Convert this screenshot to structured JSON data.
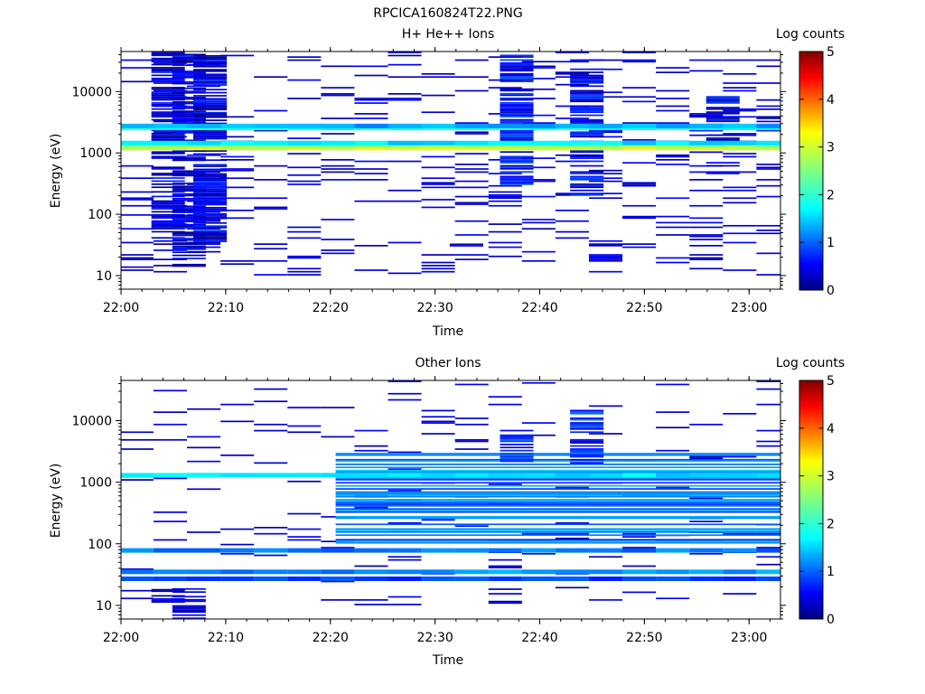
{
  "figure": {
    "title": "RPCICA160824T22.PNG"
  },
  "colors": {
    "background": "#ffffff",
    "axes": "#000000",
    "colormap": [
      "#000080",
      "#0000ff",
      "#0080ff",
      "#00ffff",
      "#80ff80",
      "#ffff00",
      "#ff8000",
      "#ff0000",
      "#800000"
    ]
  },
  "chart_data": [
    {
      "type": "heatmap",
      "title": "H+ He++ Ions",
      "xlabel": "Time",
      "ylabel": "Energy (eV)",
      "y_scale": "log",
      "xlim": [
        "22:00",
        "23:03"
      ],
      "ylim": [
        6,
        45000
      ],
      "x_ticks": [
        "22:00",
        "22:10",
        "22:20",
        "22:30",
        "22:40",
        "22:50",
        "23:00"
      ],
      "y_ticks": [
        "10",
        "100",
        "1000",
        "10000"
      ],
      "colorbar": {
        "label": "Log counts",
        "range": [
          0,
          5
        ],
        "ticks": [
          "0",
          "1",
          "2",
          "3",
          "4",
          "5"
        ]
      },
      "time_bins": [
        "22:01.5",
        "22:04.7",
        "22:07.9",
        "22:11.1",
        "22:14.3",
        "22:17.5",
        "22:20.7",
        "22:23.9",
        "22:27.1",
        "22:30.3",
        "22:33.5",
        "22:36.7",
        "22:39.9",
        "22:43.1",
        "22:46.3",
        "22:49.5",
        "22:52.7",
        "22:55.9",
        "22:59.1",
        "23:02.3"
      ],
      "bands": [
        {
          "energy_eV": 1200,
          "log_counts": 3.0
        },
        {
          "energy_eV": 1350,
          "log_counts": 2.6
        },
        {
          "energy_eV": 1450,
          "log_counts": 1.6
        },
        {
          "energy_eV": 2550,
          "log_counts": 1.8
        },
        {
          "energy_eV": 2750,
          "log_counts": 1.3
        }
      ],
      "patches": [
        {
          "time": "22:04.5",
          "energy_range_eV": [
            40,
            45000
          ],
          "log_counts": 0.3
        },
        {
          "time": "22:06.5",
          "energy_range_eV": [
            11,
            45000
          ],
          "log_counts": 0.3
        },
        {
          "time": "22:08.5",
          "energy_range_eV": [
            35,
            40000
          ],
          "log_counts": 0.4
        },
        {
          "time": "22:33.0",
          "energy_range_eV": [
            28,
            32
          ],
          "log_counts": 0.3
        },
        {
          "time": "22:37.8",
          "energy_range_eV": [
            300,
            40000
          ],
          "log_counts": 0.6
        },
        {
          "time": "22:44.5",
          "energy_range_eV": [
            200,
            35000
          ],
          "log_counts": 0.5
        },
        {
          "time": "22:57.5",
          "energy_range_eV": [
            400,
            8000
          ],
          "log_counts": 0.4
        }
      ]
    },
    {
      "type": "heatmap",
      "title": "Other Ions",
      "xlabel": "Time",
      "ylabel": "Energy (eV)",
      "y_scale": "log",
      "xlim": [
        "22:00",
        "23:03"
      ],
      "ylim": [
        6,
        45000
      ],
      "x_ticks": [
        "22:00",
        "22:10",
        "22:20",
        "22:30",
        "22:40",
        "22:50",
        "23:00"
      ],
      "y_ticks": [
        "10",
        "100",
        "1000",
        "10000"
      ],
      "colorbar": {
        "label": "Log counts",
        "range": [
          0,
          5
        ],
        "ticks": [
          "0",
          "1",
          "2",
          "3",
          "4",
          "5"
        ]
      },
      "time_bins": [
        "22:01.5",
        "22:04.7",
        "22:07.9",
        "22:11.1",
        "22:14.3",
        "22:17.5",
        "22:20.7",
        "22:23.9",
        "22:27.1",
        "22:30.3",
        "22:33.5",
        "22:36.7",
        "22:39.9",
        "22:43.1",
        "22:46.3",
        "22:49.5",
        "22:52.7",
        "22:55.9",
        "22:59.1",
        "23:02.3"
      ],
      "bands": [
        {
          "energy_eV": 1300,
          "log_counts": 1.6
        },
        {
          "energy_eV": 35,
          "log_counts": 1.2
        },
        {
          "energy_eV": 27,
          "log_counts": 0.8
        },
        {
          "energy_eV": 78,
          "log_counts": 1.1
        }
      ],
      "patches": [
        {
          "time": "22:04.5",
          "energy_range_eV": [
            11,
            18
          ],
          "log_counts": 0.3
        },
        {
          "time": "22:06.5",
          "energy_range_eV": [
            6,
            18
          ],
          "log_counts": 0.3
        },
        {
          "time": "22:20.5-23:03.0",
          "energy_range_eV": [
            80,
            3000
          ],
          "log_counts": 1.1
        },
        {
          "time": "22:37.8",
          "energy_range_eV": [
            2000,
            7000
          ],
          "log_counts": 0.8
        },
        {
          "time": "22:44.5",
          "energy_range_eV": [
            2000,
            15000
          ],
          "log_counts": 0.7
        }
      ]
    }
  ]
}
